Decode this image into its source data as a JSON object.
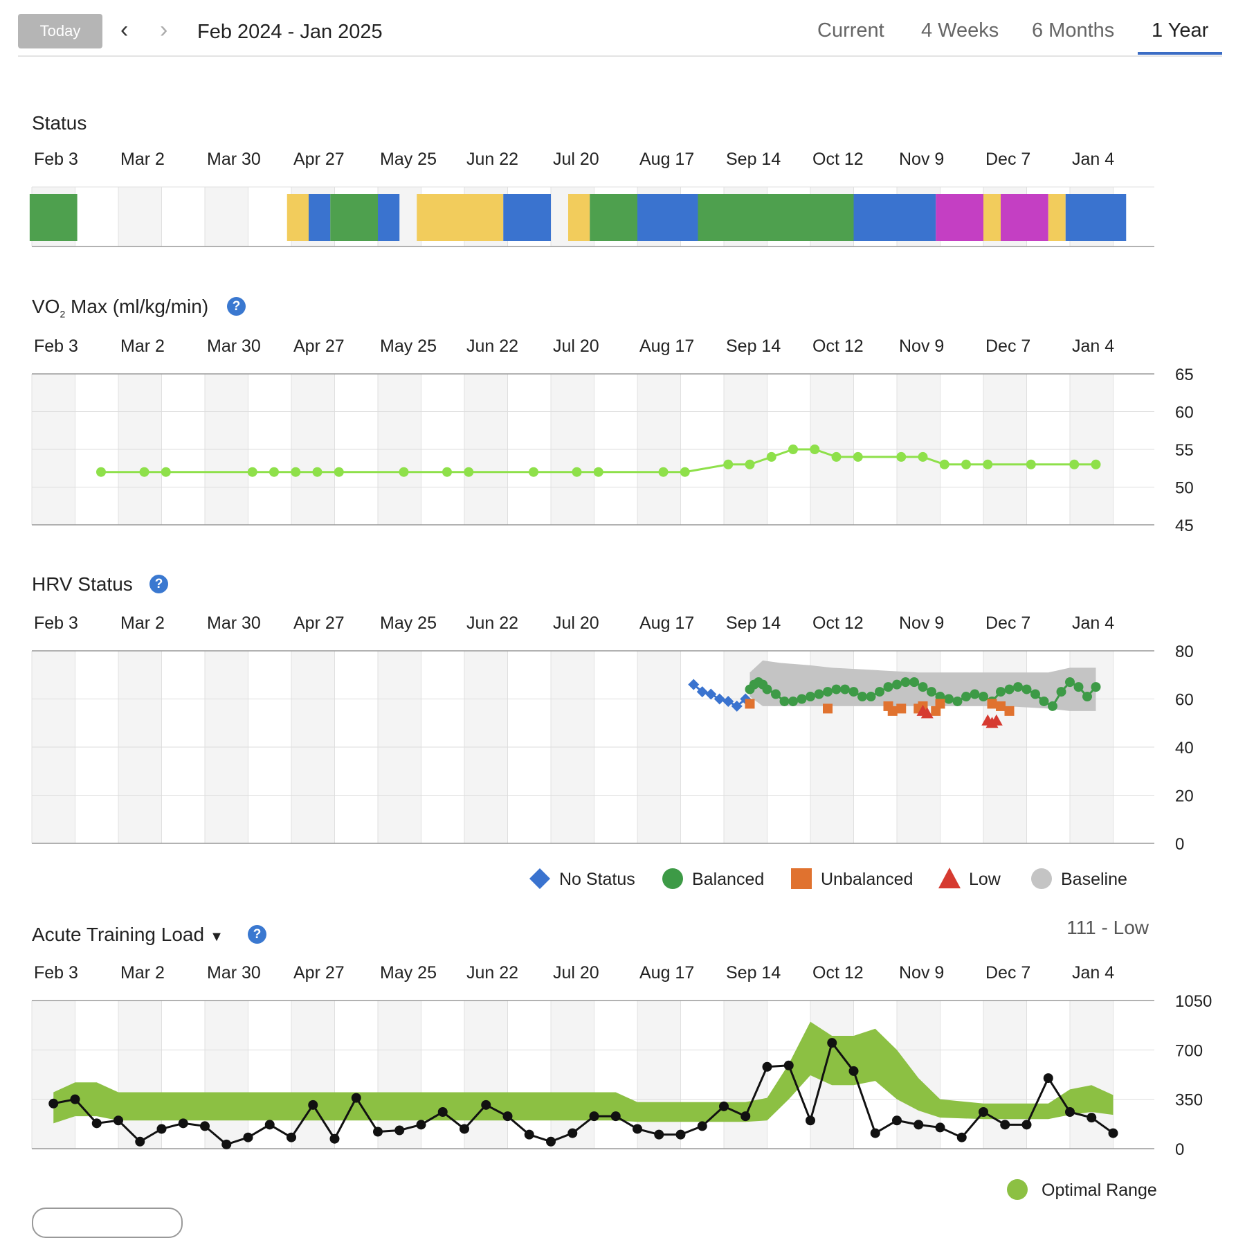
{
  "header": {
    "today_label": "Today",
    "range_label": "Feb 2024 - Jan 2025",
    "tabs": [
      "Current",
      "4 Weeks",
      "6 Months",
      "1 Year"
    ],
    "active_tab": "1 Year"
  },
  "x_axis_labels": [
    "Feb 3",
    "Mar 2",
    "Mar 30",
    "Apr 27",
    "May 25",
    "Jun 22",
    "Jul 20",
    "Aug 17",
    "Sep 14",
    "Oct 12",
    "Nov 9",
    "Dec 7",
    "Jan 4"
  ],
  "status": {
    "title": "Status",
    "colors": {
      "green": "#4ea04e",
      "yellow": "#f2cc5c",
      "blue": "#3a73cf",
      "magenta": "#c43fc3"
    },
    "segments": [
      {
        "start": -0.05,
        "end": 1.05,
        "color": "green"
      },
      {
        "start": 5.9,
        "end": 6.4,
        "color": "yellow"
      },
      {
        "start": 6.4,
        "end": 6.9,
        "color": "blue"
      },
      {
        "start": 6.9,
        "end": 8.0,
        "color": "green"
      },
      {
        "start": 8.0,
        "end": 8.5,
        "color": "blue"
      },
      {
        "start": 8.9,
        "end": 10.9,
        "color": "yellow"
      },
      {
        "start": 10.9,
        "end": 12.0,
        "color": "blue"
      },
      {
        "start": 12.4,
        "end": 12.9,
        "color": "yellow"
      },
      {
        "start": 12.9,
        "end": 14.0,
        "color": "green"
      },
      {
        "start": 14.0,
        "end": 15.4,
        "color": "blue"
      },
      {
        "start": 15.4,
        "end": 19.0,
        "color": "green"
      },
      {
        "start": 19.0,
        "end": 20.9,
        "color": "blue"
      },
      {
        "start": 20.9,
        "end": 22.0,
        "color": "magenta"
      },
      {
        "start": 22.0,
        "end": 22.4,
        "color": "yellow"
      },
      {
        "start": 22.4,
        "end": 23.5,
        "color": "magenta"
      },
      {
        "start": 23.5,
        "end": 23.9,
        "color": "yellow"
      },
      {
        "start": 23.9,
        "end": 25.3,
        "color": "blue"
      }
    ]
  },
  "vo2": {
    "title_prefix": "VO",
    "title_sub": "2",
    "title_suffix": " Max (ml/kg/min)",
    "color": "#8ee04a",
    "chart_data": {
      "type": "line",
      "y_ticks": [
        "65",
        "60",
        "55",
        "50",
        "45"
      ],
      "ylim": [
        45,
        65
      ],
      "weeks": [
        1.6,
        2.6,
        3.1,
        5.1,
        5.6,
        6.1,
        6.6,
        7.1,
        8.6,
        9.6,
        10.1,
        11.6,
        12.6,
        13.1,
        14.6,
        15.1,
        16.1,
        16.6,
        17.1,
        17.6,
        18.1,
        18.6,
        19.1,
        20.1,
        20.6,
        21.1,
        21.6,
        22.1,
        23.1,
        24.1,
        24.6
      ],
      "values": [
        52,
        52,
        52,
        52,
        52,
        52,
        52,
        52,
        52,
        52,
        52,
        52,
        52,
        52,
        52,
        52,
        53,
        53,
        54,
        55,
        55,
        54,
        54,
        54,
        54,
        53,
        53,
        53,
        53,
        53,
        53
      ]
    }
  },
  "hrv": {
    "title": "HRV Status",
    "colors": {
      "no_status": "#3a73cf",
      "balanced": "#3d9a46",
      "unbalanced": "#e0722f",
      "low": "#d63a30",
      "baseline": "#c4c4c4"
    },
    "chart_data": {
      "type": "scatter",
      "y_ticks": [
        "80",
        "60",
        "40",
        "20",
        "0"
      ],
      "ylim": [
        0,
        80
      ],
      "baseline": {
        "weeks": [
          16.6,
          16.9,
          17.3,
          18.0,
          18.5,
          19.5,
          20.5,
          21.5,
          22.5,
          23.5,
          24.0,
          24.6
        ],
        "upper": [
          71,
          76,
          75,
          74,
          73,
          72,
          71,
          71,
          71,
          71,
          73,
          73
        ],
        "lower": [
          61,
          57,
          57,
          57,
          57,
          57,
          57,
          57,
          57,
          56,
          55,
          55
        ]
      },
      "no_status": {
        "weeks": [
          15.3,
          15.5,
          15.7,
          15.9,
          16.1,
          16.3,
          16.5
        ],
        "values": [
          66,
          63,
          62,
          60,
          59,
          57,
          60
        ]
      },
      "balanced": {
        "weeks": [
          16.6,
          16.7,
          16.8,
          16.9,
          17.0,
          17.2,
          17.4,
          17.6,
          17.8,
          18.0,
          18.2,
          18.4,
          18.6,
          18.8,
          19.0,
          19.2,
          19.4,
          19.6,
          19.8,
          20.0,
          20.2,
          20.4,
          20.6,
          20.8,
          21.0,
          21.2,
          21.4,
          21.6,
          21.8,
          22.0,
          22.2,
          22.4,
          22.6,
          22.8,
          23.0,
          23.2,
          23.4,
          23.6,
          23.8,
          24.0,
          24.2,
          24.4,
          24.6
        ],
        "values": [
          64,
          66,
          67,
          66,
          64,
          62,
          59,
          59,
          60,
          61,
          62,
          63,
          64,
          64,
          63,
          61,
          61,
          63,
          65,
          66,
          67,
          67,
          65,
          63,
          61,
          60,
          59,
          61,
          62,
          61,
          59,
          63,
          64,
          65,
          64,
          62,
          59,
          57,
          63,
          67,
          65,
          61,
          65
        ]
      },
      "unbalanced": {
        "weeks": [
          16.6,
          18.4,
          19.8,
          19.9,
          20.1,
          20.5,
          20.6,
          20.9,
          21.0,
          22.2,
          22.4,
          22.6
        ],
        "values": [
          58,
          56,
          57,
          55,
          56,
          56,
          57,
          55,
          58,
          58,
          57,
          55
        ]
      },
      "low": {
        "weeks": [
          20.6,
          20.7,
          22.1,
          22.2,
          22.3
        ],
        "values": [
          55,
          54,
          51,
          50,
          51
        ]
      }
    },
    "legend": [
      "No Status",
      "Balanced",
      "Unbalanced",
      "Low",
      "Baseline"
    ]
  },
  "atl": {
    "title": "Acute Training Load",
    "readout": "111 - Low",
    "line_color": "#111111",
    "band_color": "#8cc043",
    "chart_data": {
      "type": "line",
      "y_ticks": [
        "1050",
        "700",
        "350",
        "0"
      ],
      "ylim": [
        0,
        1050
      ],
      "weeks": [
        0.5,
        1.0,
        1.5,
        2.0,
        2.5,
        3.0,
        3.5,
        4.0,
        4.5,
        5.0,
        5.5,
        6.0,
        6.5,
        7.0,
        7.5,
        8.0,
        8.5,
        9.0,
        9.5,
        10.0,
        10.5,
        11.0,
        11.5,
        12.0,
        12.5,
        13.0,
        13.5,
        14.0,
        14.5,
        15.0,
        15.5,
        16.0,
        16.5,
        17.0,
        17.5,
        18.0,
        18.5,
        19.0,
        19.5,
        20.0,
        20.5,
        21.0,
        21.5,
        22.0,
        22.5,
        23.0,
        23.5,
        24.0,
        24.5,
        25.0
      ],
      "values": [
        320,
        350,
        180,
        200,
        50,
        140,
        180,
        160,
        30,
        80,
        170,
        80,
        310,
        70,
        360,
        120,
        130,
        170,
        260,
        140,
        310,
        230,
        100,
        50,
        110,
        230,
        230,
        140,
        100,
        100,
        160,
        300,
        230,
        580,
        590,
        200,
        750,
        550,
        110,
        200,
        170,
        150,
        80,
        260,
        170,
        170,
        500,
        260,
        220,
        110
      ],
      "band_weeks": [
        0.5,
        1.0,
        1.5,
        2.0,
        2.5,
        3.0,
        4.0,
        5.0,
        6.0,
        7.0,
        8.0,
        9.0,
        10.0,
        11.0,
        12.0,
        13.0,
        13.5,
        14.0,
        15.0,
        16.0,
        16.5,
        17.0,
        17.5,
        18.0,
        18.5,
        19.0,
        19.5,
        20.0,
        20.5,
        21.0,
        22.0,
        23.0,
        23.5,
        24.0,
        24.5,
        25.0
      ],
      "band_upper": [
        400,
        470,
        470,
        400,
        400,
        400,
        400,
        400,
        400,
        400,
        400,
        400,
        400,
        400,
        400,
        400,
        400,
        330,
        330,
        330,
        330,
        360,
        600,
        900,
        800,
        800,
        850,
        700,
        500,
        350,
        320,
        320,
        320,
        420,
        450,
        380
      ],
      "band_lower": [
        180,
        230,
        230,
        200,
        200,
        200,
        200,
        200,
        200,
        200,
        200,
        200,
        200,
        200,
        200,
        200,
        200,
        190,
        190,
        190,
        190,
        200,
        350,
        520,
        450,
        450,
        480,
        350,
        270,
        220,
        210,
        210,
        210,
        240,
        260,
        240
      ]
    },
    "legend": [
      "Optimal Range"
    ]
  }
}
